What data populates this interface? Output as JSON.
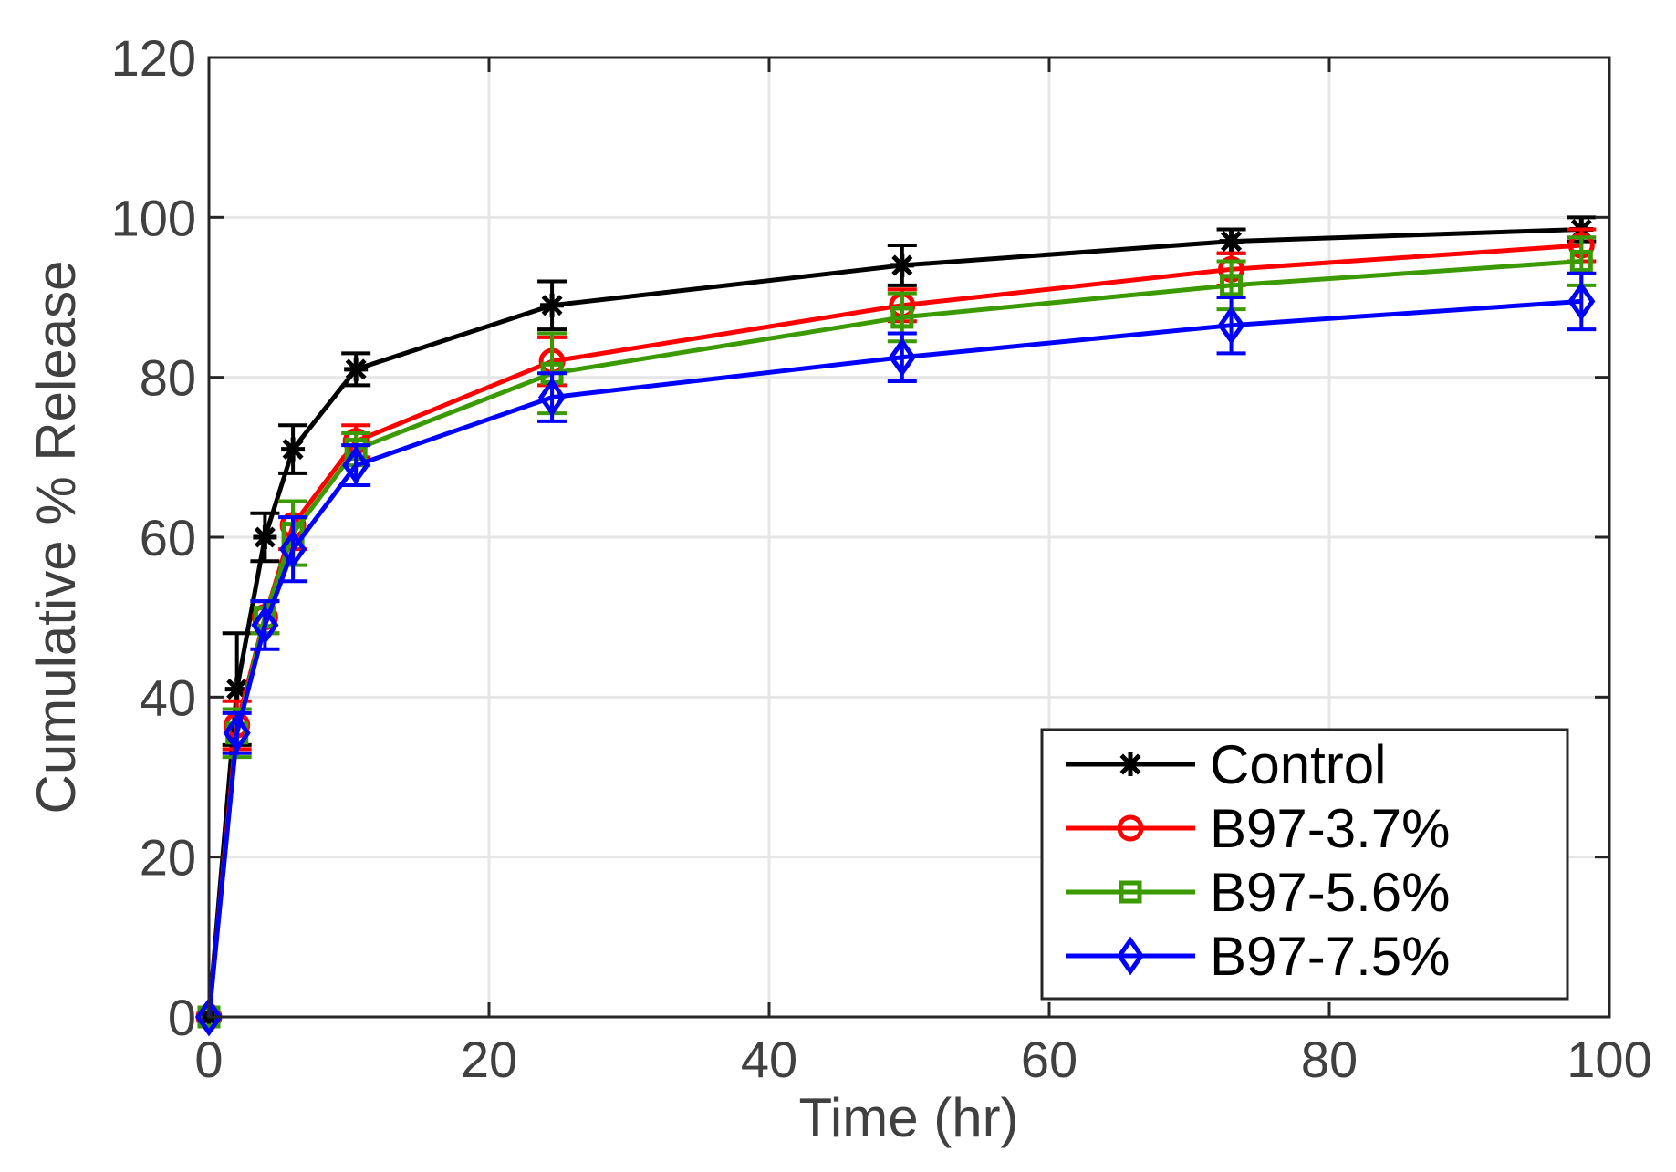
{
  "chart_data": {
    "type": "line",
    "xlabel": "Time (hr)",
    "ylabel": "Cumulative % Release",
    "xlim": [
      0,
      100
    ],
    "ylim": [
      0,
      120
    ],
    "xticks": [
      0,
      20,
      40,
      60,
      80,
      100
    ],
    "yticks": [
      0,
      20,
      40,
      60,
      80,
      100,
      120
    ],
    "xtick_labels": [
      "0",
      "20",
      "40",
      "60",
      "80",
      "100"
    ],
    "ytick_labels": [
      "0",
      "20",
      "40",
      "60",
      "80",
      "100",
      "120"
    ],
    "grid": true,
    "legend_position": "bottom-right",
    "series": [
      {
        "name": "Control",
        "color": "#000000",
        "marker": "asterisk",
        "x": [
          0,
          2,
          4,
          6,
          10.5,
          24.5,
          49.5,
          73,
          98
        ],
        "y": [
          0,
          41,
          60,
          71,
          81,
          89,
          94,
          97,
          98.5
        ],
        "err": [
          0,
          7,
          3,
          3,
          2,
          3,
          2.5,
          1.5,
          1.5
        ]
      },
      {
        "name": "B97-3.7%",
        "color": "#ff0000",
        "marker": "circle",
        "x": [
          0,
          2,
          4,
          6,
          10.5,
          24.5,
          49.5,
          73,
          98
        ],
        "y": [
          0,
          36.5,
          50,
          61.5,
          72,
          82,
          89,
          93.5,
          96.5
        ],
        "err": [
          0,
          3,
          2,
          3,
          2,
          3,
          2,
          2,
          2
        ]
      },
      {
        "name": "B97-5.6%",
        "color": "#3a9a00",
        "marker": "square",
        "x": [
          0,
          2,
          4,
          6,
          10.5,
          24.5,
          49.5,
          73,
          98
        ],
        "y": [
          0,
          35.5,
          50,
          60.5,
          71,
          80.5,
          87.5,
          91.5,
          94.5
        ],
        "err": [
          0,
          3,
          2,
          4,
          2,
          5,
          3,
          3,
          3
        ]
      },
      {
        "name": "B97-7.5%",
        "color": "#0000ff",
        "marker": "diamond",
        "x": [
          0,
          2,
          4,
          6,
          10.5,
          24.5,
          49.5,
          73,
          98
        ],
        "y": [
          0,
          35.5,
          49,
          58.5,
          69,
          77.5,
          82.5,
          86.5,
          89.5
        ],
        "err": [
          0,
          2.5,
          3,
          4,
          2.5,
          3,
          3,
          3.5,
          3.5
        ]
      }
    ]
  }
}
